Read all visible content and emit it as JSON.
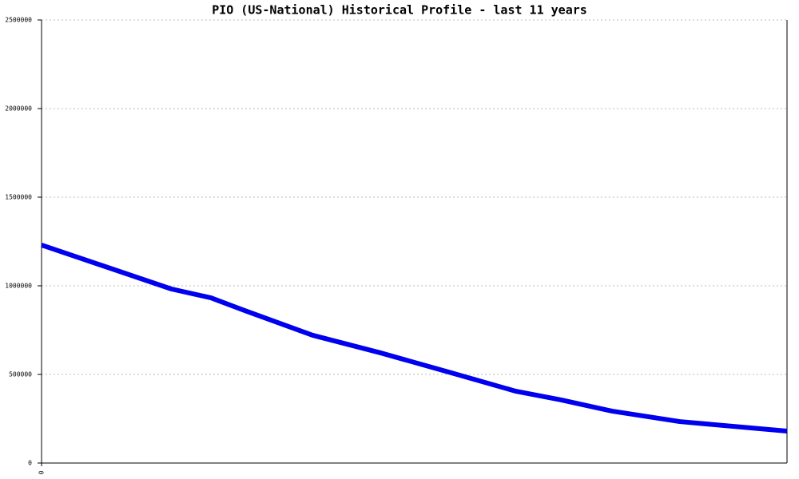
{
  "chart_data": {
    "type": "line",
    "title": "PIO (US-National) Historical Profile - last 11 years",
    "x": [
      0,
      23,
      30,
      36,
      48,
      60,
      72,
      84,
      92,
      101,
      113,
      132
    ],
    "series": [
      {
        "color": "#0000ee",
        "values": [
          1230000,
          982000,
          932000,
          860000,
          721000,
          622000,
          514000,
          405000,
          356000,
          293000,
          234000,
          180000
        ]
      }
    ],
    "xlim": [
      0,
      132
    ],
    "xticks": [
      0
    ],
    "ylim": [
      0,
      2500000
    ],
    "yticks": [
      0,
      500000,
      1000000,
      1500000,
      2000000,
      2500000
    ],
    "grid": true
  }
}
